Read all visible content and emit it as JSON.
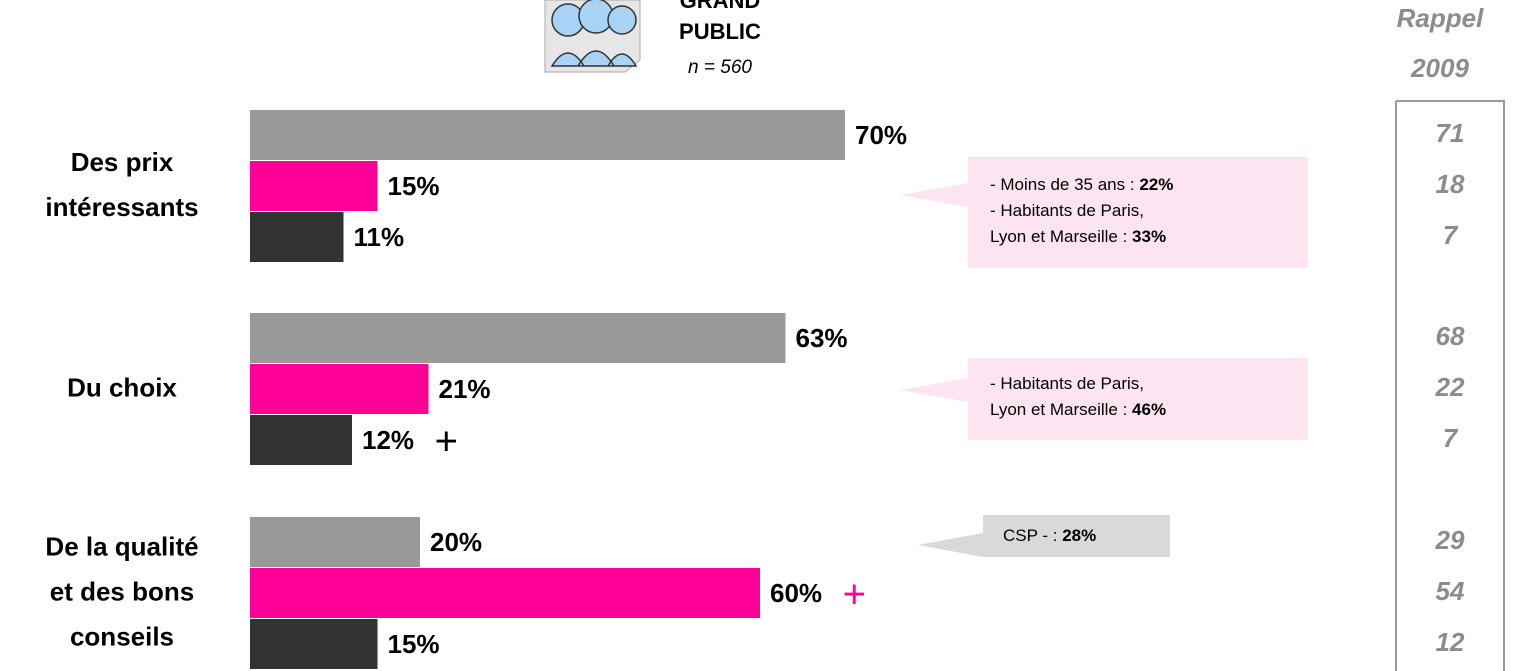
{
  "header": {
    "title": [
      "GRAND",
      "PUBLIC"
    ],
    "subtitle": "n = 560"
  },
  "chart_data": {
    "type": "bar",
    "orientation": "horizontal",
    "categories": [
      [
        "Des prix",
        "intéressants"
      ],
      [
        "Du choix"
      ],
      [
        "De la qualité",
        "et des bons",
        "conseils"
      ]
    ],
    "series": [
      {
        "color": "#999999",
        "values": [
          70,
          63,
          20
        ],
        "value_labels": [
          "70%",
          "63%",
          "20%"
        ]
      },
      {
        "color": "#ff0099",
        "values": [
          15,
          21,
          60
        ],
        "value_labels": [
          "15%",
          "21%",
          "60%"
        ]
      },
      {
        "color": "#333333",
        "values": [
          11,
          12,
          15
        ],
        "value_labels": [
          "11%",
          "12%",
          "15%"
        ]
      }
    ],
    "annotations": [
      {
        "text": "+",
        "color": "#000000",
        "series": 2,
        "category": 1
      },
      {
        "text": "+",
        "color": "#ff0099",
        "series": 1,
        "category": 2
      }
    ]
  },
  "recall": {
    "title": [
      "Rappel",
      "2009"
    ],
    "values": [
      [
        71,
        18,
        7
      ],
      [
        68,
        22,
        7
      ],
      [
        29,
        54,
        12
      ]
    ]
  },
  "callouts": [
    {
      "color": "#fce4f0",
      "lines": [
        {
          "text": "- Moins de 35 ans : ",
          "bold": "22%"
        },
        {
          "text": "- Habitants de Paris,"
        },
        {
          "text": "Lyon et Marseille : ",
          "bold": "33%"
        }
      ]
    },
    {
      "color": "#fce4f0",
      "lines": [
        {
          "text": "- Habitants de Paris,"
        },
        {
          "text": "Lyon et Marseille : ",
          "bold": "46%"
        }
      ]
    },
    {
      "color": "#d9d9d9",
      "lines": [
        {
          "text": "CSP - : ",
          "bold": "28%"
        }
      ]
    }
  ]
}
